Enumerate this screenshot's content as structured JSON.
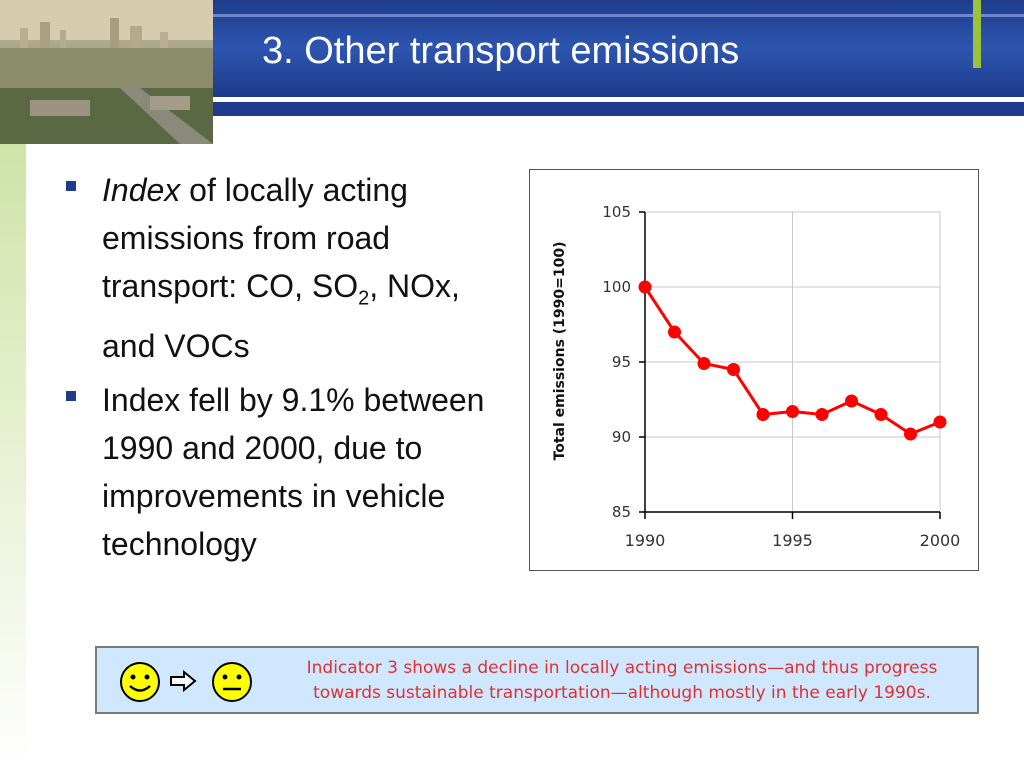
{
  "slide": {
    "title": "3. Other transport emissions",
    "bullets": [
      {
        "italic_word": "Index",
        "text_after_italic": " of locally acting emissions from road transport: CO, SO",
        "sub": "2",
        "tail": ", NOx, and VOCs"
      },
      {
        "text": "Index fell by 9.1% between 1990 and 2000, due to improvements in vehicle technology"
      }
    ]
  },
  "note": {
    "line1": "Indicator 3 shows a decline in locally acting emissions—and thus progress",
    "line2": "towards sustainable transportation—although mostly in the early 1990s.",
    "icons": [
      "smiley-icon",
      "arrow-right-icon",
      "neutral-face-icon"
    ]
  },
  "chart_data": {
    "type": "line",
    "title": "",
    "xlabel": "",
    "ylabel": "Total emissions (1990=100)",
    "x": [
      1990,
      1991,
      1992,
      1993,
      1994,
      1995,
      1996,
      1997,
      1998,
      1999,
      2000
    ],
    "series": [
      {
        "values": [
          100,
          97,
          94.9,
          94.5,
          91.5,
          91.7,
          91.5,
          92.4,
          91.5,
          90.2,
          91
        ]
      }
    ],
    "xticks": [
      "1990",
      "1995",
      "2000"
    ],
    "yticks": [
      "85",
      "90",
      "95",
      "100",
      "105"
    ],
    "xlim": [
      1990,
      2000
    ],
    "ylim": [
      85,
      105
    ],
    "grid": true,
    "line_color": "#ff0000"
  }
}
